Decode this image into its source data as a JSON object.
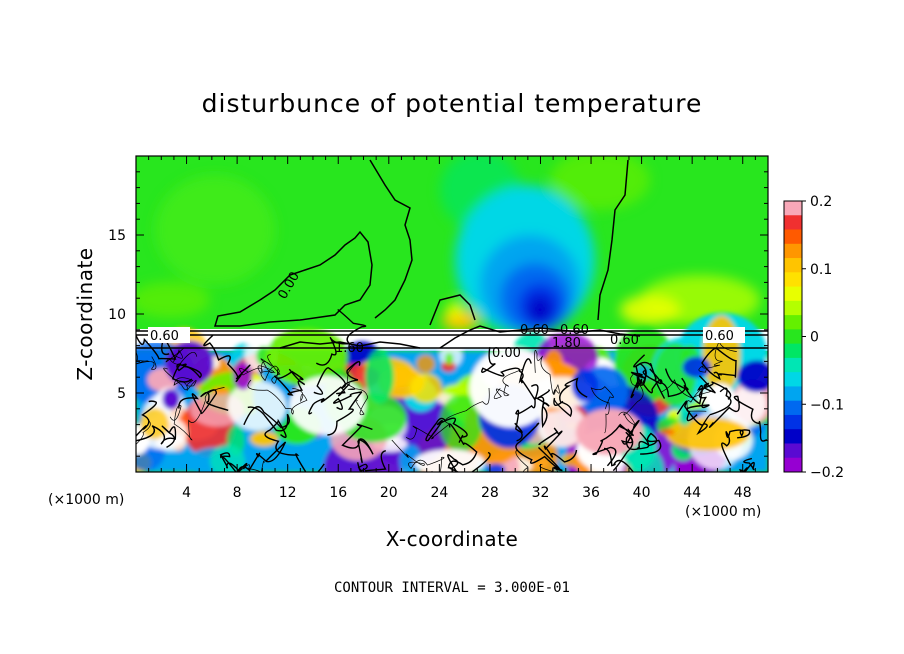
{
  "chart_data": {
    "type": "heatmap",
    "title": "disturbunce of potential temperature",
    "xlabel": "X-coordinate",
    "ylabel": "Z-coordinate",
    "x_unit_left": "(×1000 m)",
    "x_unit_right": "(×1000 m)",
    "footer": "CONTOUR INTERVAL = 3.000E-01",
    "xlim": [
      0,
      50
    ],
    "ylim": [
      0,
      20
    ],
    "xticks": [
      "4",
      "8",
      "12",
      "16",
      "20",
      "24",
      "28",
      "32",
      "36",
      "40",
      "44",
      "48"
    ],
    "yticks": [
      "5",
      "10",
      "15"
    ],
    "colorbar": {
      "range": [
        -0.2,
        0.2
      ],
      "ticks": [
        "0.2",
        "0.1",
        "0",
        "−0.1",
        "−0.2"
      ],
      "colors": [
        "#f8a8b8",
        "#f03030",
        "#ff5a00",
        "#ff9600",
        "#ffc400",
        "#ffe100",
        "#e8ff00",
        "#b4ff00",
        "#64f000",
        "#28e61e",
        "#00e664",
        "#00e6b4",
        "#00d7e6",
        "#00a5f0",
        "#0069f0",
        "#0032e6",
        "#0000c8",
        "#5a0ad2",
        "#9600d2"
      ]
    },
    "contour_labels": [
      "0.00",
      "0.60",
      "0.60",
      "0.60",
      "1.60",
      "0.60",
      "0.00",
      "1.80",
      "0.60"
    ],
    "fields": {
      "upper_background": 0.02,
      "updraft_min": -0.17,
      "updraft_center_x": 32,
      "updraft_center_z": 10.5,
      "inversion_height": 8.5
    }
  }
}
